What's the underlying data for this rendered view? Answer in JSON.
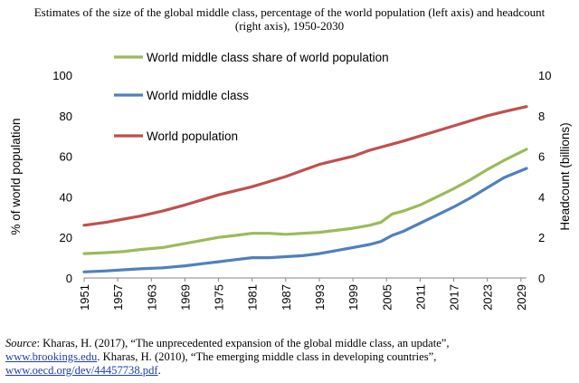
{
  "title": {
    "line1": "Estimates of the size of the global middle class, percentage of the world population (left axis) and headcount",
    "line2": "(right axis), 1950-2030"
  },
  "source": {
    "label": "Source",
    "line1_text": ": Kharas, H. (2017), “The unprecedented expansion of the global middle class, an update”,",
    "link1": "www.brookings.edu",
    "line2_text": ". Kharas, H. (2010), “The emerging middle class in developing countries”,",
    "link2": "www.oecd.org/dev/44457738.pdf",
    "end": "."
  },
  "chart_data": {
    "type": "line",
    "title": "Estimates of the size of the global middle class, percentage of the world population (left axis) and headcount (right axis), 1950-2030",
    "xlabel": "",
    "ylabel": "% of world population",
    "y2label": "Headcount  (billions)",
    "ylim": [
      0,
      100
    ],
    "y2lim": [
      0,
      10
    ],
    "yticks": [
      0,
      20,
      40,
      60,
      80,
      100
    ],
    "y2ticks": [
      0,
      2,
      4,
      6,
      8,
      10
    ],
    "xlim": [
      1951,
      2030
    ],
    "xticks": [
      "1951",
      "1957",
      "1963",
      "1969",
      "1975",
      "1981",
      "1987",
      "1993",
      "1999",
      "2005",
      "2011",
      "2017",
      "2023",
      "2029"
    ],
    "grid": false,
    "legend_position": "top-left",
    "series": [
      {
        "name": "World middle class share of world population",
        "axis": "left",
        "color": "#9bbb59",
        "x": [
          1951,
          1955,
          1958,
          1961,
          1965,
          1969,
          1972,
          1975,
          1978,
          1981,
          1984,
          1987,
          1990,
          1993,
          1996,
          1999,
          2002,
          2004,
          2006,
          2008,
          2011,
          2014,
          2017,
          2020,
          2023,
          2026,
          2030
        ],
        "values": [
          12,
          12.5,
          13,
          14,
          15,
          17,
          18.5,
          20,
          21,
          22,
          22,
          21.5,
          22,
          22.5,
          23.5,
          24.5,
          26,
          27.5,
          31.5,
          33,
          36,
          40,
          44,
          48.5,
          53.5,
          58,
          63.5
        ]
      },
      {
        "name": "World middle class",
        "axis": "right",
        "color": "#4f81bd",
        "x": [
          1951,
          1955,
          1958,
          1961,
          1965,
          1969,
          1972,
          1975,
          1978,
          1981,
          1984,
          1987,
          1990,
          1993,
          1996,
          1999,
          2002,
          2004,
          2006,
          2008,
          2011,
          2014,
          2017,
          2020,
          2023,
          2026,
          2030
        ],
        "values": [
          0.3,
          0.35,
          0.4,
          0.45,
          0.5,
          0.6,
          0.7,
          0.8,
          0.9,
          1.0,
          1.0,
          1.05,
          1.1,
          1.2,
          1.35,
          1.5,
          1.65,
          1.8,
          2.1,
          2.3,
          2.7,
          3.1,
          3.5,
          3.95,
          4.45,
          4.95,
          5.4
        ]
      },
      {
        "name": "World population",
        "axis": "right",
        "color": "#c0504d",
        "x": [
          1951,
          1955,
          1958,
          1961,
          1965,
          1969,
          1972,
          1975,
          1978,
          1981,
          1984,
          1987,
          1990,
          1993,
          1996,
          1999,
          2002,
          2004,
          2006,
          2008,
          2011,
          2014,
          2017,
          2020,
          2023,
          2026,
          2030
        ],
        "values": [
          2.6,
          2.75,
          2.9,
          3.05,
          3.3,
          3.6,
          3.85,
          4.1,
          4.3,
          4.5,
          4.75,
          5.0,
          5.3,
          5.6,
          5.8,
          6.0,
          6.3,
          6.45,
          6.6,
          6.75,
          7.0,
          7.25,
          7.5,
          7.75,
          8.0,
          8.2,
          8.45
        ]
      }
    ]
  }
}
